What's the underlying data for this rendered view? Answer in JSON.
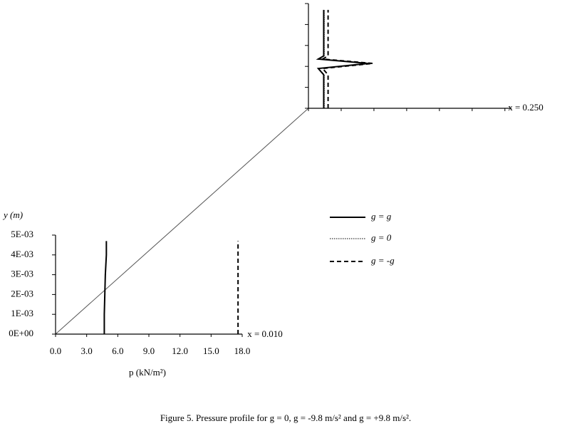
{
  "chart_data": [
    {
      "type": "line",
      "ylabel": "y (m)",
      "xlabel": "p (kN/m²)",
      "annotation": "x = 0.010",
      "xlim": [
        0,
        18
      ],
      "xticks": [
        {
          "value": 0,
          "label": "0.0"
        },
        {
          "value": 3,
          "label": "3.0"
        },
        {
          "value": 6,
          "label": "6.0"
        },
        {
          "value": 9,
          "label": "9.0"
        },
        {
          "value": 12,
          "label": "12.0"
        },
        {
          "value": 15,
          "label": "15.0"
        },
        {
          "value": 18,
          "label": "18.0"
        }
      ],
      "ylim": [
        0,
        0.005
      ],
      "yticks": [
        {
          "value": 0,
          "label": "0E+00"
        },
        {
          "value": 0.001,
          "label": "1E-03"
        },
        {
          "value": 0.002,
          "label": "2E-03"
        },
        {
          "value": 0.003,
          "label": "3E-03"
        },
        {
          "value": 0.004,
          "label": "4E-03"
        },
        {
          "value": 0.005,
          "label": "5E-03"
        }
      ],
      "y": [
        0,
        0.001,
        0.002,
        0.003,
        0.004,
        0.0047
      ],
      "series": [
        {
          "name": "g = g",
          "color": "#000000",
          "style": "solid",
          "values": [
            4.7,
            4.7,
            4.75,
            4.8,
            4.9,
            4.9
          ]
        },
        {
          "name": "g = 0",
          "color": "#000000",
          "style": "dotted",
          "values": [
            4.7,
            4.7,
            4.75,
            4.8,
            4.9,
            4.9
          ]
        },
        {
          "name": "g = -g",
          "color": "#000000",
          "style": "dashed",
          "values": [
            17.6,
            17.6,
            17.6,
            17.6,
            17.6,
            17.6
          ]
        }
      ]
    },
    {
      "type": "line",
      "annotation": "x = 0.250",
      "xlim": [
        0,
        18.6
      ],
      "xticks": [
        0,
        3,
        6,
        9,
        12,
        15,
        18
      ],
      "ylim": [
        0,
        0.005
      ],
      "yticks": [
        0,
        0.001,
        0.002,
        0.003,
        0.004,
        0.005
      ],
      "y": [
        0,
        0.0016,
        0.0019,
        0.00214,
        0.00235,
        0.0025,
        0.0047
      ],
      "series": [
        {
          "color": "#000000",
          "style": "solid",
          "values": [
            1.4,
            1.4,
            0.9,
            5.5,
            0.9,
            1.4,
            1.4
          ]
        },
        {
          "color": "#000000",
          "style": "dotted",
          "values": [
            1.45,
            1.45,
            0.95,
            5.6,
            0.95,
            1.45,
            1.45
          ]
        },
        {
          "color": "#000000",
          "style": "dashed",
          "values": [
            1.8,
            1.8,
            1.3,
            5.9,
            1.3,
            1.8,
            1.8
          ]
        }
      ]
    }
  ],
  "caption": "Figure 5. Pressure profile for g = 0, g = -9.8 m/s² and g = +9.8 m/s²."
}
